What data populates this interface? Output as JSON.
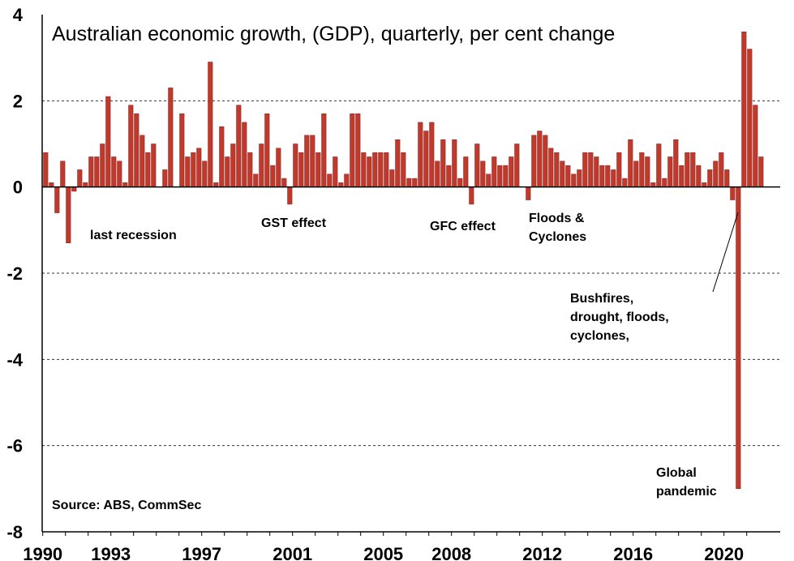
{
  "chart_data": {
    "type": "bar",
    "title": "Australian economic growth, (GDP), quarterly, per cent change",
    "source": "Source: ABS, CommSec",
    "start_year": 1990,
    "ylim": [
      -8,
      4
    ],
    "y_ticks": [
      "4",
      "2",
      "0",
      "-2",
      "-4",
      "-6",
      "-8"
    ],
    "x_tick_labels": [
      "1990",
      "1993",
      "1997",
      "2001",
      "2005",
      "2008",
      "2012",
      "2016",
      "2020"
    ],
    "grid": "horizontal dashed",
    "bar_color": "#c0392b",
    "annotations": {
      "last_recession": "last recession",
      "gst": "GST effect",
      "gfc": "GFC effect",
      "floods_1": "Floods &",
      "floods_2": "Cyclones",
      "bush_1": "Bushfires,",
      "bush_2": "drought, floods,",
      "bush_3": "cyclones,",
      "pandemic_1": "Global",
      "pandemic_2": "pandemic"
    },
    "values": [
      0.8,
      0.1,
      -0.6,
      0.6,
      -1.3,
      -0.1,
      0.4,
      0.1,
      0.7,
      0.7,
      1.0,
      2.1,
      0.7,
      0.6,
      0.1,
      1.9,
      1.7,
      1.2,
      0.8,
      1.0,
      0.0,
      0.4,
      2.3,
      0.0,
      1.7,
      0.7,
      0.8,
      0.9,
      0.6,
      2.9,
      0.1,
      1.4,
      0.7,
      1.0,
      1.9,
      1.5,
      0.8,
      0.3,
      1.0,
      1.7,
      0.5,
      0.9,
      0.2,
      -0.4,
      1.0,
      0.8,
      1.2,
      1.2,
      0.8,
      1.7,
      0.3,
      0.7,
      0.1,
      0.3,
      1.7,
      1.7,
      0.8,
      0.7,
      0.8,
      0.8,
      0.8,
      0.4,
      1.1,
      0.8,
      0.2,
      0.2,
      1.5,
      1.3,
      1.5,
      0.6,
      1.1,
      0.5,
      1.1,
      0.2,
      0.7,
      -0.4,
      1.0,
      0.6,
      0.3,
      0.7,
      0.5,
      0.5,
      0.7,
      1.0,
      0.0,
      -0.3,
      1.2,
      1.3,
      1.2,
      0.9,
      0.8,
      0.6,
      0.5,
      0.3,
      0.4,
      0.8,
      0.8,
      0.7,
      0.5,
      0.5,
      0.4,
      0.8,
      0.2,
      1.1,
      0.6,
      0.8,
      0.7,
      0.1,
      1.0,
      0.2,
      0.7,
      1.1,
      0.5,
      0.8,
      0.8,
      0.5,
      0.1,
      0.4,
      0.6,
      0.8,
      0.4,
      -0.3,
      -7.0,
      3.6,
      3.2,
      1.9,
      0.7
    ]
  }
}
